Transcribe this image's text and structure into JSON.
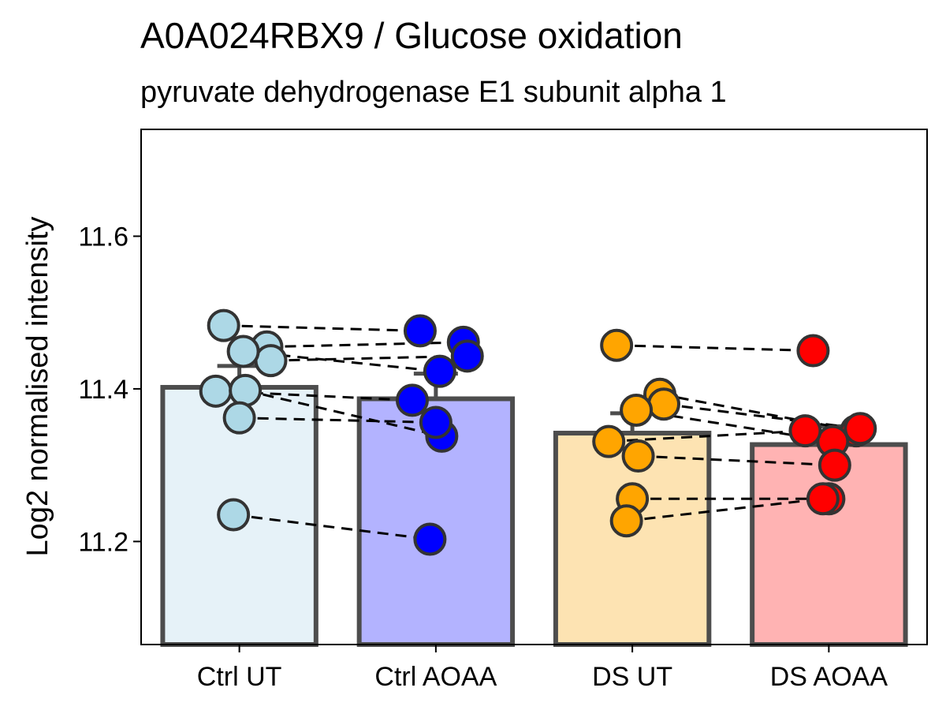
{
  "chart_data": {
    "type": "bar",
    "title": "A0A024RBX9 / Glucose oxidation",
    "subtitle": "pyruvate dehydrogenase E1 subunit alpha 1",
    "xlabel": "",
    "ylabel": "Log2 normalised intensity",
    "ylim": [
      11.065,
      11.74
    ],
    "yticks": [
      "11.2",
      "11.4",
      "11.6"
    ],
    "grid": false,
    "categories": [
      "Ctrl UT",
      "Ctrl AOAA",
      "DS UT",
      "DS AOAA"
    ],
    "bar_colors": [
      "#e6f2f8",
      "#b3b3ff",
      "#fde3b2",
      "#ffb3b3"
    ],
    "point_colors": [
      "#add8e6",
      "#0000ff",
      "#ffa500",
      "#ff0000"
    ],
    "values": [
      11.402,
      11.387,
      11.342,
      11.327
    ],
    "error_upper": [
      11.43,
      11.42,
      11.368,
      11.351
    ],
    "points": [
      [
        11.483,
        11.455,
        11.437,
        11.449,
        11.397,
        11.398,
        11.362,
        11.235
      ],
      [
        11.476,
        11.461,
        11.443,
        11.423,
        11.385,
        11.338,
        11.356,
        11.203
      ],
      [
        11.457,
        11.393,
        11.38,
        11.372,
        11.331,
        11.312,
        11.256,
        11.227
      ],
      [
        11.45,
        11.345,
        11.348,
        11.331,
        11.345,
        11.3,
        11.256,
        11.256
      ]
    ],
    "pairs": [
      [
        1,
        2
      ],
      [
        3,
        4
      ]
    ]
  }
}
